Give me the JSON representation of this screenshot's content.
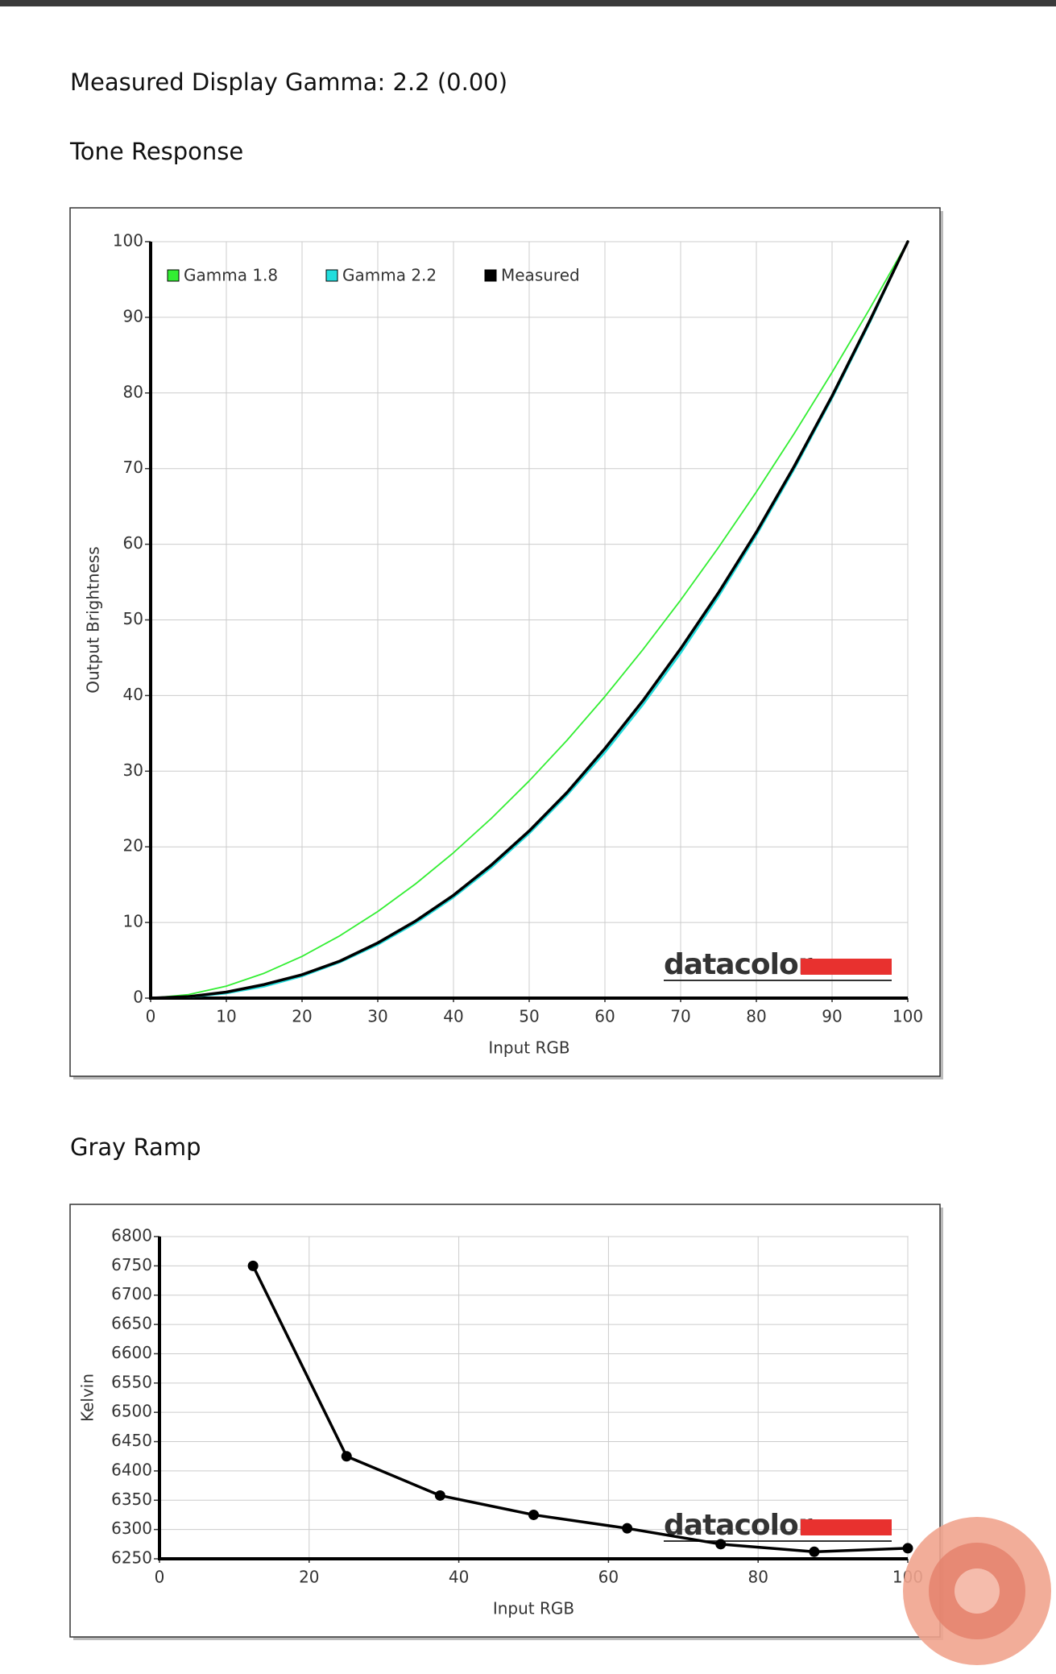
{
  "header": {
    "title": "Measured Display Gamma: 2.2 (0.00)"
  },
  "chart_data": [
    {
      "type": "line",
      "title": "Tone Response",
      "x_label": "Input RGB",
      "y_label": "Output Brightness",
      "watermark": "datacolor",
      "x": [
        0,
        5,
        10,
        15,
        20,
        25,
        30,
        35,
        40,
        45,
        50,
        55,
        60,
        65,
        70,
        75,
        80,
        85,
        90,
        95,
        100
      ],
      "series": [
        {
          "name": "Gamma 1.8",
          "color": "#33ee33",
          "values": [
            0,
            0.46,
            1.58,
            3.29,
            5.52,
            8.25,
            11.45,
            15.11,
            19.22,
            23.76,
            28.72,
            34.09,
            39.87,
            46.05,
            52.62,
            59.58,
            66.92,
            74.64,
            82.72,
            91.18,
            100
          ]
        },
        {
          "name": "Gamma 2.2",
          "color": "#22dddd",
          "values": [
            0,
            0.14,
            0.63,
            1.54,
            2.9,
            4.74,
            7.07,
            9.93,
            13.32,
            17.26,
            21.76,
            26.84,
            32.5,
            38.76,
            45.62,
            53.1,
            61.2,
            69.94,
            79.31,
            89.33,
            100
          ]
        },
        {
          "name": "Measured",
          "color": "#000000",
          "values": [
            0,
            0.2,
            0.8,
            1.8,
            3.1,
            4.9,
            7.3,
            10.2,
            13.6,
            17.6,
            22.1,
            27.2,
            33.0,
            39.3,
            46.2,
            53.6,
            61.6,
            70.3,
            79.6,
            89.6,
            100
          ]
        }
      ],
      "xlim": [
        0,
        100
      ],
      "xticks": [
        0,
        10,
        20,
        30,
        40,
        50,
        60,
        70,
        80,
        90,
        100
      ],
      "ylim": [
        0,
        100
      ],
      "yticks": [
        0,
        10,
        20,
        30,
        40,
        50,
        60,
        70,
        80,
        90,
        100
      ],
      "grid": true,
      "legend": "top-left"
    },
    {
      "type": "line",
      "title": "Gray Ramp",
      "x_label": "Input RGB",
      "y_label": "Kelvin",
      "watermark": "datacolor",
      "x": [
        12.5,
        25,
        37.5,
        50,
        62.5,
        75,
        87.5,
        100
      ],
      "values": [
        6750,
        6425,
        6358,
        6325,
        6302,
        6275,
        6262,
        6268
      ],
      "color": "#000000",
      "markers": true,
      "xlim": [
        0,
        100
      ],
      "xticks": [
        0,
        20,
        40,
        60,
        80,
        100
      ],
      "ylim": [
        6250,
        6800
      ],
      "yticks": [
        6250,
        6300,
        6350,
        6400,
        6450,
        6500,
        6550,
        6600,
        6650,
        6700,
        6750,
        6800
      ],
      "grid": true
    }
  ]
}
